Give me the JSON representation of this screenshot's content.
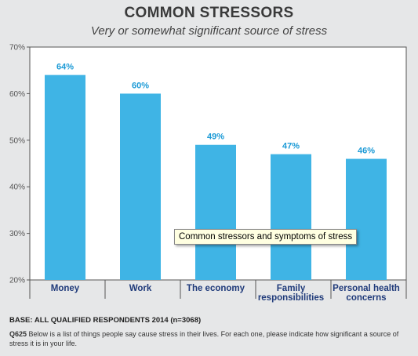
{
  "chart_data": {
    "type": "bar",
    "title": "COMMON STRESSORS",
    "subtitle": "Very or somewhat significant source of stress",
    "categories": [
      [
        "Money"
      ],
      [
        "Work"
      ],
      [
        "The economy"
      ],
      [
        "Family",
        "responsibilities"
      ],
      [
        "Personal health",
        "concerns"
      ]
    ],
    "values": [
      64,
      60,
      49,
      47,
      46
    ],
    "data_labels": [
      "64%",
      "60%",
      "49%",
      "47%",
      "46%"
    ],
    "ylim": [
      20,
      70
    ],
    "yticks": [
      20,
      30,
      40,
      50,
      60,
      70
    ],
    "ytick_labels": [
      "20%",
      "30%",
      "40%",
      "50%",
      "60%",
      "70%"
    ],
    "bar_color": "#3fb4e5",
    "label_color": "#1b9ad6",
    "grid": false
  },
  "footer": {
    "base": "BASE: ALL QUALIFIED RESPONDENTS 2014 (n=3068)",
    "question_id": "Q625",
    "question_text": "Below is a list of things people say cause stress in their lives. For each one, please indicate how significant a source of stress it is in your life."
  },
  "tooltip": {
    "text": "Common stressors and symptoms of stress"
  }
}
